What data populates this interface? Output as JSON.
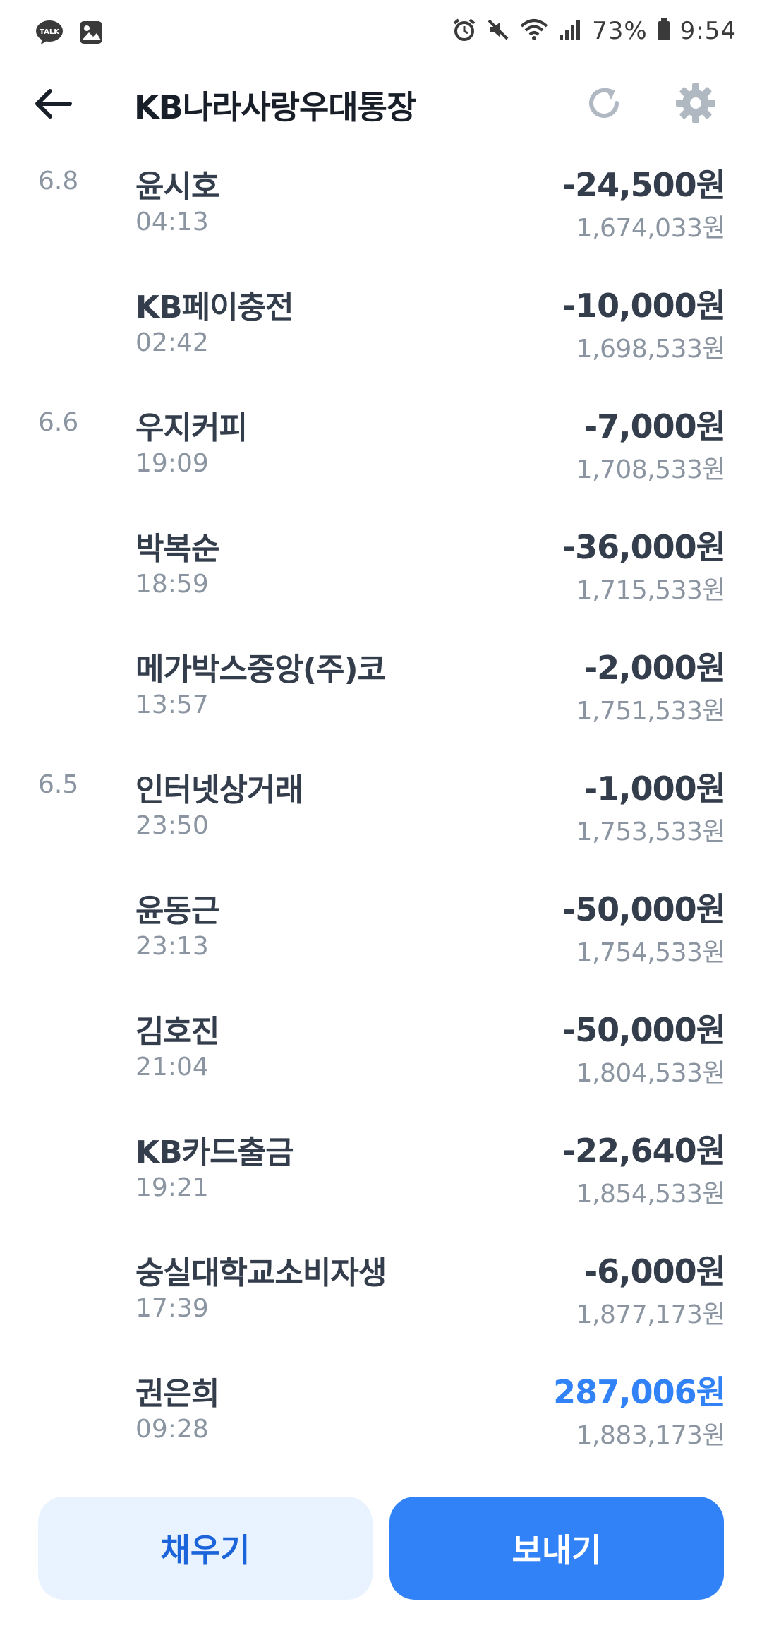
{
  "status_bar": {
    "battery": "73%",
    "time": "9:54",
    "left_icons": [
      "kakaotalk-icon",
      "gallery-icon"
    ],
    "right_icons": [
      "alarm-icon",
      "mute-icon",
      "wifi-icon",
      "signal-icon",
      "battery-icon"
    ]
  },
  "header": {
    "title": "KB나라사랑우대통장"
  },
  "transactions": [
    {
      "date": "6.8",
      "name": "윤시호",
      "time": "04:13",
      "amount": "-24,500원",
      "balance": "1,674,033원",
      "type": "withdrawal"
    },
    {
      "date": "",
      "name": "KB페이충전",
      "time": "02:42",
      "amount": "-10,000원",
      "balance": "1,698,533원",
      "type": "withdrawal"
    },
    {
      "date": "6.6",
      "name": "우지커피",
      "time": "19:09",
      "amount": "-7,000원",
      "balance": "1,708,533원",
      "type": "withdrawal"
    },
    {
      "date": "",
      "name": "박복순",
      "time": "18:59",
      "amount": "-36,000원",
      "balance": "1,715,533원",
      "type": "withdrawal"
    },
    {
      "date": "",
      "name": "메가박스중앙(주)코",
      "time": "13:57",
      "amount": "-2,000원",
      "balance": "1,751,533원",
      "type": "withdrawal"
    },
    {
      "date": "6.5",
      "name": "인터넷상거래",
      "time": "23:50",
      "amount": "-1,000원",
      "balance": "1,753,533원",
      "type": "withdrawal"
    },
    {
      "date": "",
      "name": "윤동근",
      "time": "23:13",
      "amount": "-50,000원",
      "balance": "1,754,533원",
      "type": "withdrawal"
    },
    {
      "date": "",
      "name": "김호진",
      "time": "21:04",
      "amount": "-50,000원",
      "balance": "1,804,533원",
      "type": "withdrawal"
    },
    {
      "date": "",
      "name": "KB카드출금",
      "time": "19:21",
      "amount": "-22,640원",
      "balance": "1,854,533원",
      "type": "withdrawal"
    },
    {
      "date": "",
      "name": "숭실대학교소비자생",
      "time": "17:39",
      "amount": "-6,000원",
      "balance": "1,877,173원",
      "type": "withdrawal"
    },
    {
      "date": "",
      "name": "권은희",
      "time": "09:28",
      "amount": "287,006원",
      "balance": "1,883,173원",
      "type": "deposit"
    }
  ],
  "buttons": {
    "fill_label": "채우기",
    "send_label": "보내기"
  },
  "colors": {
    "accent": "#3182f6",
    "fill_button_bg": "#e8f3ff",
    "fill_button_text": "#1b64da",
    "primary_text": "#333d4b",
    "secondary_text": "#8b95a1"
  }
}
